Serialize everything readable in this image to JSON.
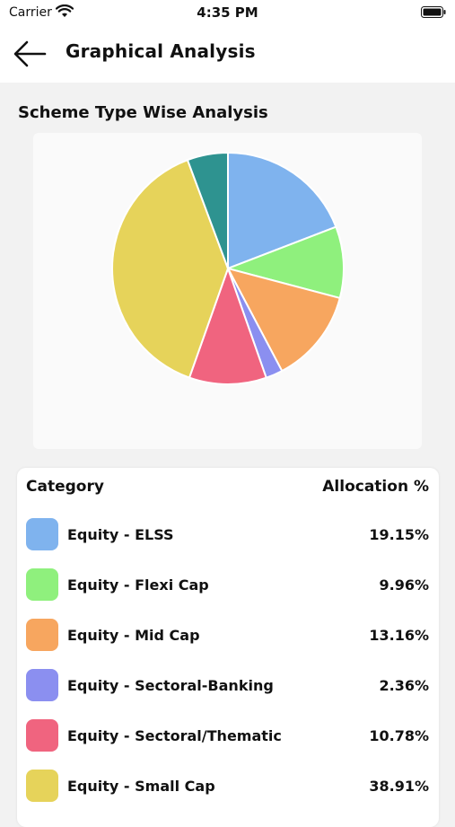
{
  "status_bar": {
    "carrier": "Carrier",
    "time": "4:35 PM"
  },
  "header": {
    "title": "Graphical Analysis",
    "back_icon": "arrow-left-icon"
  },
  "section_title": "Scheme Type Wise Analysis",
  "table": {
    "col_category": "Category",
    "col_allocation": "Allocation %",
    "rows": [
      {
        "label": "Equity - ELSS",
        "value": "19.15%",
        "color": "#7fb3ee"
      },
      {
        "label": "Equity - Flexi Cap",
        "value": "9.96%",
        "color": "#8ff07d"
      },
      {
        "label": "Equity - Mid Cap",
        "value": "13.16%",
        "color": "#f7a65f"
      },
      {
        "label": "Equity - Sectoral-Banking",
        "value": "2.36%",
        "color": "#8b8ff0"
      },
      {
        "label": "Equity - Sectoral/Thematic",
        "value": "10.78%",
        "color": "#f0647f"
      },
      {
        "label": "Equity - Small Cap",
        "value": "38.91%",
        "color": "#e6d35a"
      }
    ]
  },
  "chart_data": {
    "type": "pie",
    "categories": [
      "Equity - ELSS",
      "Equity - Flexi Cap",
      "Equity - Mid Cap",
      "Equity - Sectoral-Banking",
      "Equity - Sectoral/Thematic",
      "Equity - Small Cap",
      ""
    ],
    "values": [
      19.15,
      9.96,
      13.16,
      2.36,
      10.78,
      38.91,
      5.68
    ],
    "colors": [
      "#7fb3ee",
      "#8ff07d",
      "#f7a65f",
      "#8b8ff0",
      "#f0647f",
      "#e6d35a",
      "#2e9390"
    ],
    "title": "Scheme Type Wise Analysis",
    "start": "top",
    "direction": "clockwise"
  }
}
